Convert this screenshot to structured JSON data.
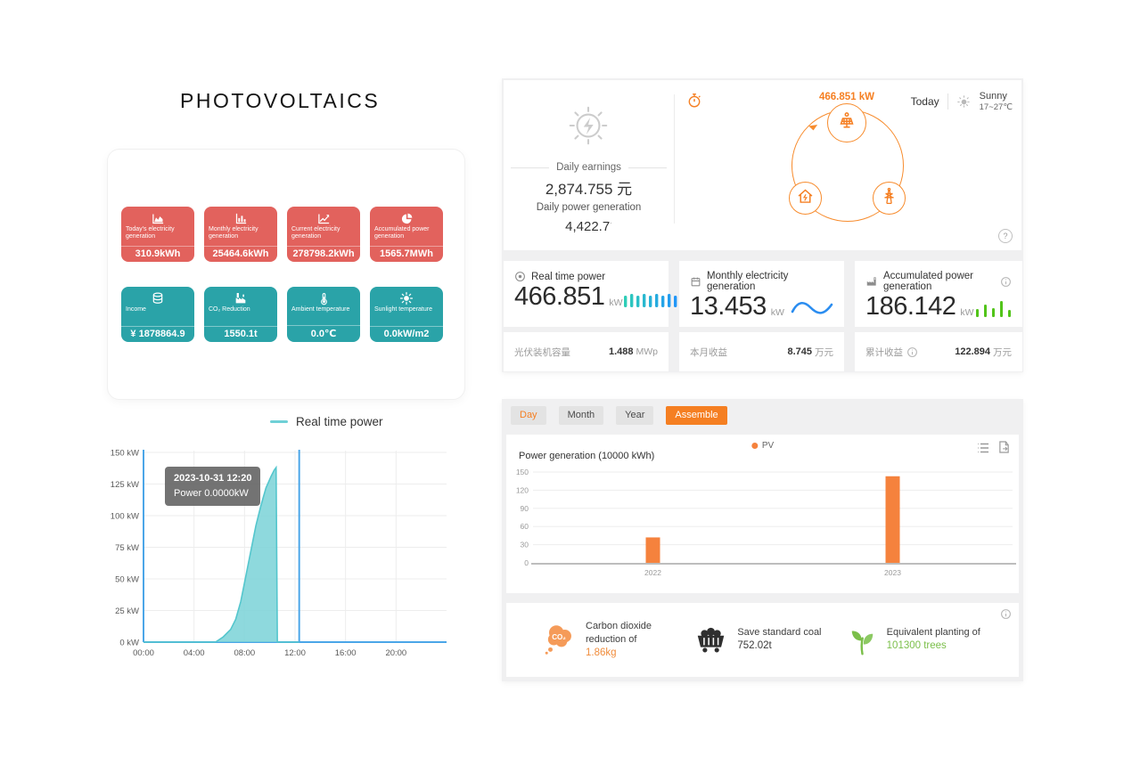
{
  "title": "PHOTOVOLTAICS",
  "summary_tiles": {
    "red": [
      {
        "icon": "area-chart-icon",
        "label": "Today's electricity generation",
        "value": "310.9kWh"
      },
      {
        "icon": "bar-chart-icon",
        "label": "Monthly electricity generation",
        "value": "25464.6kWh"
      },
      {
        "icon": "line-chart-icon",
        "label": "Current electricity generation",
        "value": "278798.2kWh"
      },
      {
        "icon": "pie-chart-icon",
        "label": "Accumulated power generation",
        "value": "1565.7MWh"
      }
    ],
    "teal": [
      {
        "icon": "coins-icon",
        "label": "Income",
        "value": "¥ 1878864.9"
      },
      {
        "icon": "factory-icon",
        "label": "CO₂ Reduction",
        "value": "1550.1t"
      },
      {
        "icon": "thermometer-icon",
        "label": "Ambient temperature",
        "value": "0.0℃"
      },
      {
        "icon": "sun-icon",
        "label": "Sunlight temperature",
        "value": "0.0kW/m2"
      }
    ]
  },
  "realtime_legend": "Real time power",
  "tooltip": {
    "line1": "2023-10-31 12:20",
    "line2": "Power 0.0000kW"
  },
  "overview": {
    "daily_earnings_label": "Daily earnings",
    "daily_earnings_value": "2,874.755 元",
    "daily_generation_label": "Daily power generation",
    "daily_generation_value": "4,422.7",
    "flow_power": "466.851 kW",
    "weather": {
      "day": "Today",
      "condition": "Sunny",
      "range": "17~27℃"
    }
  },
  "stat_cards": [
    {
      "icon": "gauge-icon",
      "title": "Real time power",
      "value": "466.851",
      "unit": "kW",
      "graphic": "bars-gradient",
      "title_info": false,
      "footer_label": "光伏装机容量",
      "footer_info": false,
      "footer_value": "1.488",
      "footer_unit": "MWp"
    },
    {
      "icon": "calendar-icon",
      "title": "Monthly electricity generation",
      "value": "13.453",
      "unit": "kW",
      "graphic": "wave",
      "title_info": false,
      "footer_label": "本月收益",
      "footer_info": false,
      "footer_value": "8.745",
      "footer_unit": "万元"
    },
    {
      "icon": "plant-icon",
      "title": "Accumulated power generation",
      "value": "186.142",
      "unit": "kW",
      "graphic": "bars-green",
      "title_info": true,
      "footer_label": "累计收益",
      "footer_info": true,
      "footer_value": "122.894",
      "footer_unit": "万元"
    }
  ],
  "tabs": [
    {
      "label": "Day",
      "active": false,
      "accent_text": true
    },
    {
      "label": "Month",
      "active": false,
      "accent_text": false
    },
    {
      "label": "Year",
      "active": false,
      "accent_text": false
    },
    {
      "label": "Assemble",
      "active": true,
      "accent_text": false
    }
  ],
  "generation_chart": {
    "title": "Power generation (10000 kWh)",
    "legend": "PV"
  },
  "eco_items": [
    {
      "icon": "co2-cloud-icon",
      "line1": "Carbon dioxide reduction of",
      "line2": "1.86kg",
      "color": "#f08c3c"
    },
    {
      "icon": "coal-cart-icon",
      "line1": "Save standard coal",
      "line2": "752.02t",
      "color": "#3a3a3a"
    },
    {
      "icon": "tree-icon",
      "line1": "Equivalent planting of",
      "line2": "101300 trees",
      "color": "#7bbf4a"
    }
  ],
  "chart_data": [
    {
      "type": "area",
      "title": "Real time power",
      "ylabel": "kW",
      "x_ticks": [
        "00:00",
        "04:00",
        "08:00",
        "12:00",
        "16:00",
        "20:00"
      ],
      "x_tick_hours": [
        0,
        4,
        8,
        12,
        16,
        20
      ],
      "y_ticks": [
        0,
        25,
        50,
        75,
        100,
        125,
        150
      ],
      "y_tick_suffix": " kW",
      "xlim_hours": [
        0,
        24
      ],
      "ylim": [
        0,
        150
      ],
      "grid": true,
      "crosshair_hour": 12.33,
      "series": [
        {
          "name": "Real time power",
          "color": "#54c6cd",
          "fill": "#7ad2d7",
          "points_hour_kw": [
            [
              0,
              0
            ],
            [
              5.7,
              0
            ],
            [
              6.3,
              4
            ],
            [
              6.9,
              10
            ],
            [
              7.3,
              18
            ],
            [
              7.7,
              32
            ],
            [
              8.1,
              52
            ],
            [
              8.5,
              72
            ],
            [
              8.9,
              92
            ],
            [
              9.3,
              108
            ],
            [
              9.7,
              122
            ],
            [
              10.1,
              131
            ],
            [
              10.35,
              136
            ],
            [
              10.5,
              138
            ],
            [
              10.6,
              0
            ],
            [
              12.33,
              0
            ]
          ]
        }
      ],
      "tooltip": {
        "time": "2023-10-31 12:20",
        "value_kw": 0.0
      }
    },
    {
      "type": "bar",
      "title": "Power generation (10000 kWh)",
      "categories": [
        "2022",
        "2023"
      ],
      "series": [
        {
          "name": "PV",
          "values": [
            42,
            143
          ],
          "color": "#f5823d"
        }
      ],
      "y_ticks": [
        0,
        30,
        60,
        90,
        120,
        150
      ],
      "ylim": [
        0,
        150
      ],
      "grid": true,
      "legend_position": "top-center"
    }
  ],
  "misc": {
    "help_glyph": "?",
    "colors": {
      "accent_orange": "#f57f22",
      "tile_red": "#e2625d",
      "tile_teal": "#2aa3a8",
      "axis_blue": "#4ba6e8",
      "bar_orange": "#f5823d",
      "green": "#52c41a"
    }
  }
}
